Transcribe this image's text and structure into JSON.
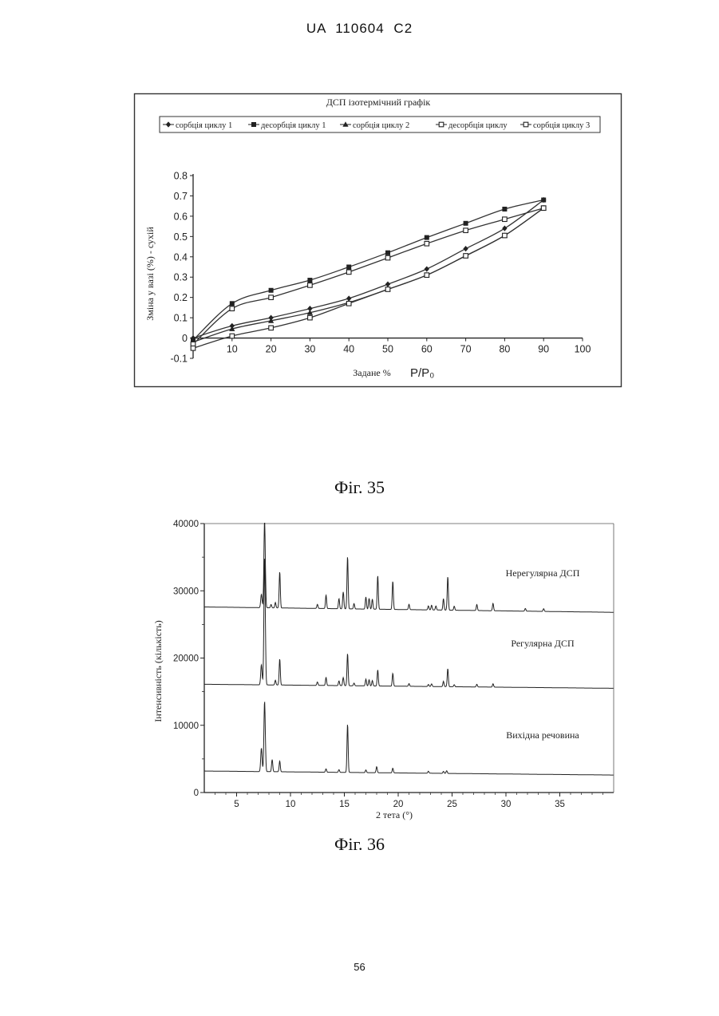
{
  "header": {
    "text": "UA   110604   C2"
  },
  "figures": {
    "fig35_caption": "Фіг. 35",
    "fig36_caption": "Фіг. 36"
  },
  "page": {
    "number": "56"
  },
  "chart_data": [
    {
      "type": "line",
      "title": "ДСП ізотермічний графік",
      "xlabel": "Задане %",
      "xlabel_unit": "P/P₀",
      "ylabel": "Зміна у вазі (%) - сухій",
      "xlim": [
        0,
        100
      ],
      "ylim": [
        -0.1,
        0.8
      ],
      "x_ticks": [
        10,
        20,
        30,
        40,
        50,
        60,
        70,
        80,
        90,
        100
      ],
      "x_tick_labels": [
        "10",
        "20",
        "30",
        "40",
        "50",
        "60",
        "70",
        "80",
        "90",
        "100"
      ],
      "y_ticks": [
        -0.1,
        0,
        0.1,
        0.2,
        0.3,
        0.4,
        0.5,
        0.6,
        0.7,
        0.8
      ],
      "y_tick_labels": [
        "-0.1",
        "0",
        "0.1",
        "0.2",
        "0.3",
        "0.4",
        "0.5",
        "0.6",
        "0.7",
        "0.8"
      ],
      "legend_position": "top",
      "series": [
        {
          "name": "сорбція циклу 1",
          "marker": "diamond",
          "x": [
            0,
            10,
            20,
            30,
            40,
            50,
            60,
            70,
            80,
            90
          ],
          "y": [
            0.0,
            0.06,
            0.1,
            0.145,
            0.195,
            0.265,
            0.34,
            0.44,
            0.54,
            0.68
          ]
        },
        {
          "name": "десорбція циклу 1",
          "marker": "filled-square",
          "x": [
            90,
            80,
            70,
            60,
            50,
            40,
            30,
            20,
            10,
            0
          ],
          "y": [
            0.68,
            0.635,
            0.565,
            0.495,
            0.42,
            0.35,
            0.285,
            0.235,
            0.17,
            -0.01
          ]
        },
        {
          "name": "сорбція циклу 2",
          "marker": "triangle",
          "x": [
            0,
            10,
            20,
            30,
            40,
            50,
            60,
            70,
            80,
            90
          ],
          "y": [
            -0.02,
            0.045,
            0.085,
            0.125,
            0.175,
            0.24,
            0.31,
            0.405,
            0.505,
            0.64
          ]
        },
        {
          "name": "десорбція циклу",
          "marker": "open-square",
          "x": [
            90,
            80,
            70,
            60,
            50,
            40,
            30,
            20,
            10,
            0
          ],
          "y": [
            0.64,
            0.585,
            0.53,
            0.465,
            0.395,
            0.325,
            0.26,
            0.2,
            0.145,
            -0.03
          ]
        },
        {
          "name": "сорбція циклу 3",
          "marker": "open-square",
          "x": [
            0,
            10,
            20,
            30,
            40,
            50,
            60,
            70,
            80,
            90
          ],
          "y": [
            -0.05,
            0.01,
            0.05,
            0.1,
            0.17,
            0.24,
            0.31,
            0.405,
            0.505,
            0.64
          ]
        }
      ]
    },
    {
      "type": "line",
      "xlabel": "2 тета (°)",
      "ylabel": "Інтенсивність (кількість)",
      "xlim": [
        2,
        40
      ],
      "ylim": [
        0,
        40000
      ],
      "x_ticks": [
        5,
        10,
        15,
        20,
        25,
        30,
        35
      ],
      "x_tick_labels": [
        "5",
        "10",
        "15",
        "20",
        "25",
        "30",
        "35"
      ],
      "y_ticks": [
        0,
        10000,
        20000,
        30000,
        40000
      ],
      "y_tick_labels": [
        "0",
        "10000",
        "20000",
        "30000",
        "40000"
      ],
      "series": [
        {
          "name": "Нерегулярна ДСП",
          "baseline_start": 27600,
          "baseline_end": 26800,
          "peaks": [
            [
              7.3,
              2000
            ],
            [
              7.6,
              13000
            ],
            [
              8.2,
              500
            ],
            [
              8.6,
              800
            ],
            [
              9.0,
              5400
            ],
            [
              12.5,
              600
            ],
            [
              13.3,
              2000
            ],
            [
              14.5,
              1500
            ],
            [
              14.9,
              2500
            ],
            [
              15.3,
              7800
            ],
            [
              15.9,
              800
            ],
            [
              17.0,
              1800
            ],
            [
              17.3,
              1600
            ],
            [
              17.6,
              1500
            ],
            [
              18.1,
              5000
            ],
            [
              19.5,
              4200
            ],
            [
              21.0,
              800
            ],
            [
              22.8,
              600
            ],
            [
              23.1,
              700
            ],
            [
              23.5,
              600
            ],
            [
              24.2,
              1700
            ],
            [
              24.6,
              5000
            ],
            [
              25.2,
              600
            ],
            [
              27.3,
              900
            ],
            [
              28.8,
              1100
            ],
            [
              31.8,
              400
            ],
            [
              33.5,
              400
            ]
          ]
        },
        {
          "name": "Регулярна ДСП",
          "baseline_start": 16100,
          "baseline_end": 15500,
          "peaks": [
            [
              7.3,
              3000
            ],
            [
              7.6,
              19000
            ],
            [
              8.6,
              700
            ],
            [
              9.0,
              3900
            ],
            [
              12.5,
              500
            ],
            [
              13.3,
              1200
            ],
            [
              14.5,
              700
            ],
            [
              14.9,
              1200
            ],
            [
              15.3,
              4800
            ],
            [
              15.9,
              400
            ],
            [
              17.0,
              1000
            ],
            [
              17.3,
              900
            ],
            [
              17.6,
              800
            ],
            [
              18.1,
              2400
            ],
            [
              19.5,
              1900
            ],
            [
              21.0,
              400
            ],
            [
              22.8,
              300
            ],
            [
              23.1,
              400
            ],
            [
              24.2,
              800
            ],
            [
              24.6,
              2700
            ],
            [
              25.2,
              300
            ],
            [
              27.3,
              400
            ],
            [
              28.8,
              500
            ]
          ]
        },
        {
          "name": "Вихідна речовина",
          "baseline_start": 3200,
          "baseline_end": 2600,
          "peaks": [
            [
              7.3,
              3500
            ],
            [
              7.6,
              10500
            ],
            [
              8.3,
              1800
            ],
            [
              9.0,
              1600
            ],
            [
              13.3,
              500
            ],
            [
              14.5,
              400
            ],
            [
              15.3,
              7200
            ],
            [
              17.0,
              400
            ],
            [
              18.0,
              900
            ],
            [
              19.5,
              700
            ],
            [
              22.8,
              300
            ],
            [
              24.2,
              300
            ],
            [
              24.5,
              400
            ]
          ]
        }
      ]
    }
  ]
}
